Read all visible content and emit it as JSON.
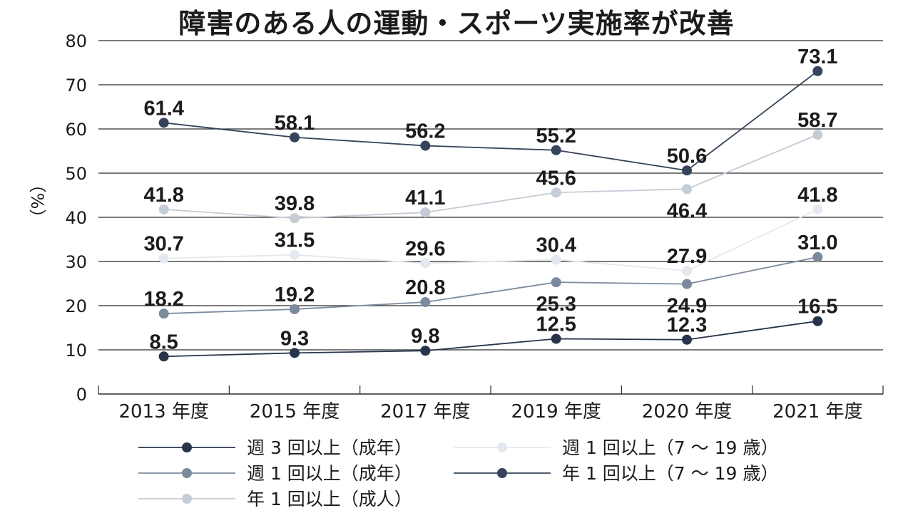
{
  "chart_data": {
    "type": "line",
    "title": "障害のある人の運動・スポーツ実施率が改善",
    "ylabel": "（%）",
    "xlabel": "",
    "ylim": [
      0,
      80
    ],
    "yticks": [
      0,
      10,
      20,
      30,
      40,
      50,
      60,
      70,
      80
    ],
    "grid": true,
    "legend_position": "bottom",
    "categories": [
      "2013 年度",
      "2015 年度",
      "2017 年度",
      "2019 年度",
      "2020 年度",
      "2021 年度"
    ],
    "series": [
      {
        "name": "週 3 回以上（成年）",
        "color": "#27344a",
        "values": [
          8.5,
          9.3,
          9.8,
          12.5,
          12.3,
          16.5
        ]
      },
      {
        "name": "週 1 回以上（成年）",
        "color": "#7b8a9c",
        "values": [
          18.2,
          19.2,
          20.8,
          25.3,
          24.9,
          31.0
        ]
      },
      {
        "name": "年 1 回以上（成人）",
        "color": "#c4ccd6",
        "values": [
          41.8,
          39.8,
          41.1,
          45.6,
          46.4,
          58.7
        ]
      },
      {
        "name": "週 1 回以上（7 ～ 19 歳）",
        "color": "#e4e9ef",
        "values": [
          30.7,
          31.5,
          29.6,
          30.4,
          27.9,
          41.8
        ]
      },
      {
        "name": "年 1 回以上（7 ～ 19 歳）",
        "color": "#35445a",
        "values": [
          61.4,
          58.1,
          56.2,
          55.2,
          50.6,
          73.1
        ]
      }
    ]
  }
}
